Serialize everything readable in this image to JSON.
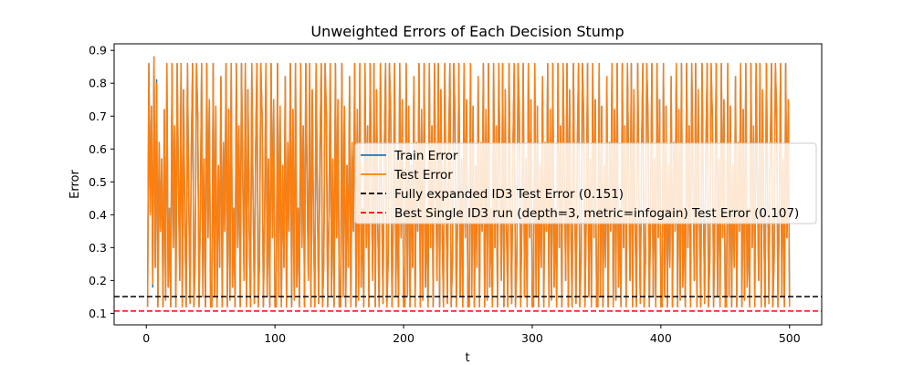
{
  "chart_data": {
    "type": "line",
    "title": "Unweighted Errors of Each Decision Stump",
    "xlabel": "t",
    "ylabel": "Error",
    "xlim": [
      -25,
      525
    ],
    "ylim": [
      0.065,
      0.92
    ],
    "xticks": [
      0,
      100,
      200,
      300,
      400,
      500
    ],
    "yticks": [
      0.1,
      0.2,
      0.3,
      0.4,
      0.5,
      0.6,
      0.7,
      0.8,
      0.9
    ],
    "grid": false,
    "legend_position": "center-right",
    "x": {
      "start": 1,
      "end": 500,
      "step": 1
    },
    "series": [
      {
        "name": "Train Error",
        "color": "#1f77b4",
        "style": "solid",
        "pattern_values": [
          0.12,
          0.86,
          0.15,
          0.73,
          0.12,
          0.55,
          0.24,
          0.82,
          0.12,
          0.62,
          0.35,
          0.86,
          0.12,
          0.72,
          0.14,
          0.86,
          0.18,
          0.42,
          0.12,
          0.86,
          0.3,
          0.67,
          0.12,
          0.86,
          0.5,
          0.2,
          0.86,
          0.12,
          0.78,
          0.36,
          0.12,
          0.86,
          0.45,
          0.13,
          0.6,
          0.86,
          0.12,
          0.26,
          0.86,
          0.7,
          0.12,
          0.4,
          0.86,
          0.15,
          0.57,
          0.12,
          0.86,
          0.33,
          0.75,
          0.12
        ],
        "overrides": [
          {
            "x": 3,
            "y": 0.41
          },
          {
            "x": 5,
            "y": 0.18
          },
          {
            "x": 6,
            "y": 0.88
          },
          {
            "x": 8,
            "y": 0.81
          },
          {
            "x": 12,
            "y": 0.57
          }
        ]
      },
      {
        "name": "Test Error",
        "color": "#ff7f0e",
        "style": "solid",
        "pattern_values": [
          0.12,
          0.86,
          0.15,
          0.73,
          0.12,
          0.55,
          0.24,
          0.82,
          0.12,
          0.62,
          0.35,
          0.86,
          0.12,
          0.72,
          0.14,
          0.86,
          0.18,
          0.42,
          0.12,
          0.86,
          0.3,
          0.67,
          0.12,
          0.86,
          0.5,
          0.2,
          0.86,
          0.12,
          0.78,
          0.36,
          0.12,
          0.86,
          0.45,
          0.13,
          0.6,
          0.86,
          0.12,
          0.26,
          0.86,
          0.7,
          0.12,
          0.4,
          0.86,
          0.15,
          0.57,
          0.12,
          0.86,
          0.33,
          0.75,
          0.12
        ],
        "overrides": [
          {
            "x": 3,
            "y": 0.4
          },
          {
            "x": 5,
            "y": 0.19
          },
          {
            "x": 6,
            "y": 0.88
          },
          {
            "x": 8,
            "y": 0.8
          },
          {
            "x": 12,
            "y": 0.57
          }
        ]
      }
    ],
    "hlines": [
      {
        "name": "Fully expanded ID3 Test Error (0.151)",
        "y": 0.151,
        "color": "#000000",
        "style": "dashed"
      },
      {
        "name": "Best Single ID3 run (depth=3, metric=infogain) Test Error (0.107)",
        "y": 0.107,
        "color": "#ff0000",
        "style": "dashed"
      }
    ]
  }
}
